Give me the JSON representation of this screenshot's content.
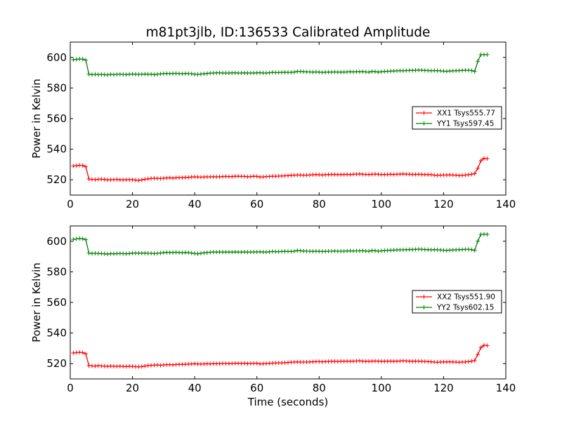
{
  "title": "m81pt3jlb, ID:136533 Calibrated Amplitude",
  "xlabel": "Time (seconds)",
  "colors": {
    "red": "#ff0000",
    "green": "#008000"
  },
  "chart_data": [
    {
      "type": "line",
      "title": "m81pt3jlb, ID:136533 Calibrated Amplitude",
      "xlabel": "",
      "ylabel": "Power in Kelvin",
      "xlim": [
        0,
        140
      ],
      "ylim": [
        510,
        610
      ],
      "xticks": [
        0,
        20,
        40,
        60,
        80,
        100,
        120,
        140
      ],
      "yticks": [
        520,
        540,
        560,
        580,
        600
      ],
      "grid": false,
      "legend_position": "right",
      "markers": "plus",
      "x": [
        1,
        2,
        3,
        4,
        5,
        6,
        7,
        8,
        9,
        10,
        11,
        12,
        13,
        14,
        15,
        16,
        17,
        18,
        19,
        20,
        21,
        22,
        23,
        24,
        25,
        26,
        27,
        28,
        29,
        30,
        31,
        32,
        33,
        34,
        35,
        36,
        37,
        38,
        39,
        40,
        41,
        42,
        43,
        44,
        45,
        46,
        47,
        48,
        49,
        50,
        51,
        52,
        53,
        54,
        55,
        56,
        57,
        58,
        59,
        60,
        61,
        62,
        63,
        64,
        65,
        66,
        67,
        68,
        69,
        70,
        71,
        72,
        73,
        74,
        75,
        76,
        77,
        78,
        79,
        80,
        81,
        82,
        83,
        84,
        85,
        86,
        87,
        88,
        89,
        90,
        91,
        92,
        93,
        94,
        95,
        96,
        97,
        98,
        99,
        100,
        101,
        102,
        103,
        104,
        105,
        106,
        107,
        108,
        109,
        110,
        111,
        112,
        113,
        114,
        115,
        116,
        117,
        118,
        119,
        120,
        121,
        122,
        123,
        124,
        125,
        126,
        127,
        128,
        129,
        130,
        131,
        132,
        133,
        134
      ],
      "series": [
        {
          "name": "XX1 Tsys555.77",
          "color": "#ff0000",
          "values": [
            529,
            529.2,
            529.5,
            529.3,
            528.5,
            520.5,
            520.2,
            520.1,
            520.3,
            520.4,
            520.2,
            519.9,
            520,
            520.1,
            520.2,
            520,
            519.9,
            520,
            520.1,
            520,
            519.8,
            519.6,
            519.9,
            520.3,
            520.6,
            520.9,
            521,
            520.9,
            520.8,
            521,
            521.2,
            521.3,
            521.1,
            521.3,
            521.4,
            521.4,
            521.5,
            521.6,
            521.8,
            521.9,
            521.8,
            521.7,
            521.8,
            521.9,
            521.9,
            522,
            521.9,
            522,
            522.1,
            522.2,
            522.1,
            522.1,
            522.3,
            522.3,
            522.2,
            522.2,
            522,
            522.1,
            522.3,
            522.2,
            521.8,
            521.9,
            522.1,
            522.2,
            522.3,
            522.3,
            522.4,
            522.5,
            522.6,
            522.7,
            522.9,
            523,
            523.1,
            523.1,
            523,
            523,
            523.1,
            523.3,
            523.4,
            523.3,
            523.1,
            523.3,
            523.4,
            523.5,
            523.5,
            523.4,
            523.4,
            523.5,
            523.5,
            523.4,
            523.6,
            523.7,
            523.8,
            523.6,
            523.5,
            523.4,
            523.6,
            523.7,
            523.6,
            523.4,
            523.4,
            523.5,
            523.6,
            523.5,
            523.6,
            523.7,
            523.8,
            523.7,
            523.6,
            523.5,
            523.5,
            523.6,
            523.5,
            523.4,
            523.4,
            523.3,
            523,
            522.9,
            523,
            523.1,
            523.1,
            523.2,
            523.1,
            523,
            522.8,
            522.9,
            523.1,
            523.3,
            523.6,
            524,
            527.5,
            532.5,
            534,
            533.8
          ]
        },
        {
          "name": "YY1 Tsys597.45",
          "color": "#008000",
          "values": [
            598.5,
            598.7,
            599,
            598.9,
            598.2,
            589,
            588.8,
            588.9,
            588.8,
            588.9,
            588.7,
            588.6,
            588.9,
            588.8,
            588.9,
            589,
            588.9,
            588.8,
            589,
            589.1,
            589,
            588.9,
            589,
            589.1,
            589,
            589,
            588.8,
            589,
            589.2,
            589.4,
            589.5,
            589.4,
            589.5,
            589.6,
            589.4,
            589.3,
            589.5,
            589.4,
            589.3,
            589,
            588.9,
            589.1,
            589.3,
            589.5,
            589.7,
            589.8,
            589.9,
            589.9,
            589.8,
            589.8,
            589.8,
            589.9,
            589.9,
            589.8,
            589.8,
            589.9,
            589.8,
            589.8,
            589.8,
            589.9,
            590,
            589.8,
            589.8,
            590,
            590.2,
            590.1,
            590.1,
            590.2,
            590.3,
            590.2,
            590.2,
            590.4,
            590.8,
            590.8,
            590.6,
            590.5,
            590.5,
            590.4,
            590.5,
            590.4,
            590.2,
            590.3,
            590.4,
            590.4,
            590.5,
            590.4,
            590.4,
            590.4,
            590.5,
            590.6,
            590.5,
            590.6,
            590.6,
            590.7,
            590.5,
            590.4,
            590.8,
            590.7,
            590.4,
            590.6,
            590.8,
            590.9,
            591,
            591.1,
            591.2,
            591.3,
            591.3,
            591.4,
            591.5,
            591.5,
            591.6,
            591.7,
            591.6,
            591.5,
            591.4,
            591.3,
            591.4,
            591.3,
            591.2,
            591,
            590.9,
            591.1,
            591.2,
            591.3,
            591.4,
            591.5,
            591.6,
            591.6,
            591.4,
            590.8,
            597.5,
            601.8,
            601.8,
            601.8
          ]
        }
      ]
    },
    {
      "type": "line",
      "title": "",
      "xlabel": "Time (seconds)",
      "ylabel": "Power in Kelvin",
      "xlim": [
        0,
        140
      ],
      "ylim": [
        510,
        610
      ],
      "xticks": [
        0,
        20,
        40,
        60,
        80,
        100,
        120,
        140
      ],
      "yticks": [
        520,
        540,
        560,
        580,
        600
      ],
      "grid": false,
      "legend_position": "right",
      "markers": "plus",
      "x": [
        1,
        2,
        3,
        4,
        5,
        6,
        7,
        8,
        9,
        10,
        11,
        12,
        13,
        14,
        15,
        16,
        17,
        18,
        19,
        20,
        21,
        22,
        23,
        24,
        25,
        26,
        27,
        28,
        29,
        30,
        31,
        32,
        33,
        34,
        35,
        36,
        37,
        38,
        39,
        40,
        41,
        42,
        43,
        44,
        45,
        46,
        47,
        48,
        49,
        50,
        51,
        52,
        53,
        54,
        55,
        56,
        57,
        58,
        59,
        60,
        61,
        62,
        63,
        64,
        65,
        66,
        67,
        68,
        69,
        70,
        71,
        72,
        73,
        74,
        75,
        76,
        77,
        78,
        79,
        80,
        81,
        82,
        83,
        84,
        85,
        86,
        87,
        88,
        89,
        90,
        91,
        92,
        93,
        94,
        95,
        96,
        97,
        98,
        99,
        100,
        101,
        102,
        103,
        104,
        105,
        106,
        107,
        108,
        109,
        110,
        111,
        112,
        113,
        114,
        115,
        116,
        117,
        118,
        119,
        120,
        121,
        122,
        123,
        124,
        125,
        126,
        127,
        128,
        129,
        130,
        131,
        132,
        133,
        134
      ],
      "series": [
        {
          "name": "XX2 Tsys551.90",
          "color": "#ff0000",
          "values": [
            527,
            527.2,
            527.4,
            527.2,
            526.4,
            518.6,
            518.5,
            518.4,
            518.6,
            518.5,
            518.3,
            518.2,
            518.4,
            518.3,
            518.2,
            518.3,
            518.2,
            518.1,
            518.3,
            518.2,
            518,
            517.9,
            518.1,
            518.4,
            518.7,
            518.9,
            519,
            519.1,
            518.9,
            519.1,
            519.3,
            519.3,
            519.2,
            519.4,
            519.5,
            519.5,
            519.6,
            519.7,
            519.8,
            519.9,
            519.8,
            519.7,
            519.8,
            519.9,
            519.8,
            520,
            519.9,
            520,
            520.1,
            520.1,
            520,
            520.1,
            520.2,
            520.2,
            520.1,
            520.2,
            520,
            520.1,
            520.2,
            520.2,
            519.8,
            519.9,
            520.1,
            520.2,
            520.3,
            520.4,
            520.5,
            520.5,
            520.6,
            520.7,
            520.9,
            521,
            521.1,
            521,
            521,
            521,
            521.1,
            521.2,
            521.3,
            521.3,
            521.2,
            521.3,
            521.4,
            521.5,
            521.5,
            521.4,
            521.5,
            521.5,
            521.6,
            521.5,
            521.6,
            521.7,
            521.8,
            521.6,
            521.5,
            521.5,
            521.6,
            521.7,
            521.6,
            521.5,
            521.5,
            521.6,
            521.6,
            521.5,
            521.6,
            521.7,
            521.8,
            521.7,
            521.6,
            521.5,
            521.6,
            521.6,
            521.5,
            521.4,
            521.3,
            521.2,
            521,
            520.9,
            521,
            521.1,
            521.1,
            521.2,
            521.1,
            521,
            520.9,
            521,
            521.1,
            521.3,
            521.6,
            522,
            526,
            530.5,
            532,
            531.8
          ]
        },
        {
          "name": "YY2 Tsys602.15",
          "color": "#008000",
          "values": [
            601.2,
            601.5,
            601.8,
            601.6,
            601,
            592.2,
            592,
            592.1,
            592,
            591.9,
            591.8,
            591.6,
            591.9,
            591.8,
            591.9,
            592,
            591.9,
            591.8,
            592,
            592.2,
            592.3,
            592.2,
            592.2,
            592.2,
            592.1,
            592.1,
            592,
            592.1,
            592.3,
            592.5,
            592.7,
            592.6,
            592.7,
            592.8,
            592.6,
            592.5,
            592.6,
            592.5,
            592.3,
            592,
            591.8,
            592.1,
            592.4,
            592.6,
            592.8,
            592.9,
            592.9,
            593,
            592.9,
            592.9,
            592.9,
            592.9,
            593,
            592.9,
            592.9,
            593,
            592.9,
            592.9,
            593,
            593,
            593.1,
            592.9,
            592.9,
            593.1,
            593.3,
            593.2,
            593.2,
            593.3,
            593.4,
            593.3,
            593.3,
            593.5,
            593.9,
            593.8,
            593.6,
            593.5,
            593.5,
            593.4,
            593.5,
            593.4,
            593.3,
            593.4,
            593.5,
            593.5,
            593.6,
            593.5,
            593.5,
            593.5,
            593.6,
            593.7,
            593.6,
            593.7,
            593.7,
            593.8,
            593.6,
            593.5,
            593.9,
            593.8,
            593.5,
            593.7,
            593.9,
            594,
            594.1,
            594.2,
            594.3,
            594.4,
            594.4,
            594.5,
            594.6,
            594.6,
            594.7,
            594.8,
            594.7,
            594.6,
            594.5,
            594.4,
            594.5,
            594.4,
            594.3,
            594.1,
            594,
            594.2,
            594.3,
            594.4,
            594.5,
            594.6,
            594.7,
            594.7,
            594.5,
            594,
            600,
            604.5,
            604.6,
            604.5
          ]
        }
      ]
    }
  ]
}
